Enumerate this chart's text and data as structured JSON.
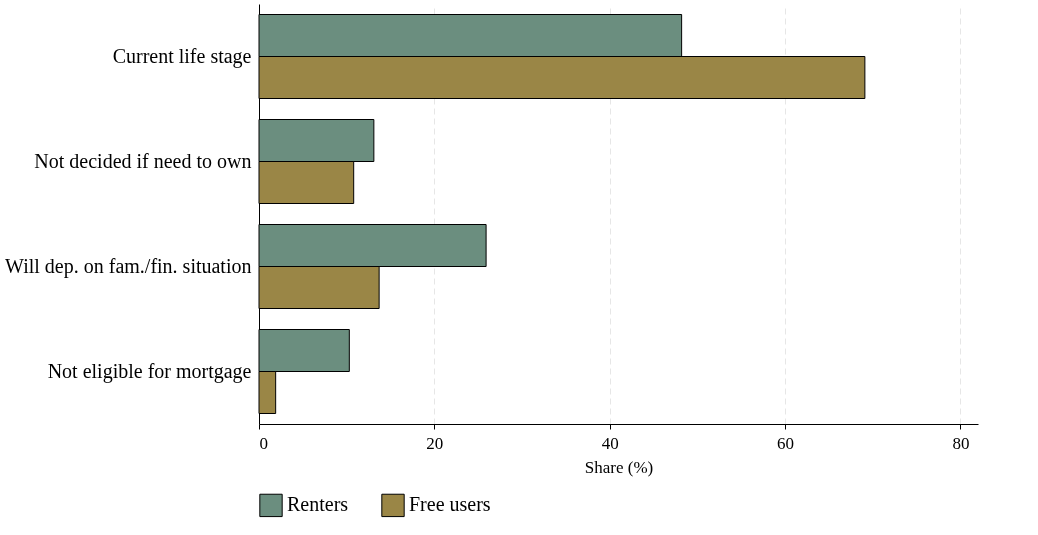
{
  "chart_data": {
    "type": "bar",
    "orientation": "horizontal",
    "xlabel": "Share (%)",
    "categories": [
      "Current life stage",
      "Not decided if need to own",
      "Will dep. on fam./fin. situation",
      "Not eligible for mortgage"
    ],
    "series": [
      {
        "name": "Renters",
        "color": "#6b8e7f",
        "values": [
          48.2,
          13.1,
          25.9,
          10.3
        ]
      },
      {
        "name": "Free users",
        "color": "#9a8646",
        "values": [
          69.1,
          10.8,
          13.7,
          1.9
        ]
      }
    ],
    "xlim": [
      0,
      82
    ],
    "xticks": [
      0,
      20,
      40,
      60,
      80
    ],
    "grid": "x",
    "legend": "bottom"
  }
}
